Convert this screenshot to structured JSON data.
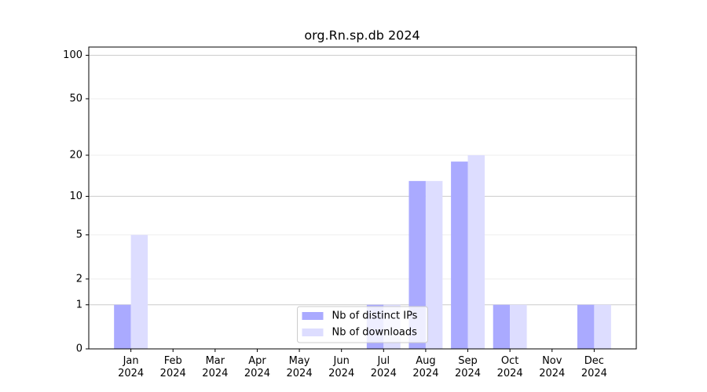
{
  "chart_data": {
    "type": "bar",
    "title": "org.Rn.sp.db 2024",
    "categories": [
      "Jan\n2024",
      "Feb\n2024",
      "Mar\n2024",
      "Apr\n2024",
      "May\n2024",
      "Jun\n2024",
      "Jul\n2024",
      "Aug\n2024",
      "Sep\n2024",
      "Oct\n2024",
      "Nov\n2024",
      "Dec\n2024"
    ],
    "series": [
      {
        "name": "Nb of distinct IPs",
        "color": "#aaaaff",
        "values": [
          1,
          0,
          0,
          0,
          0,
          0,
          1,
          13,
          18,
          1,
          0,
          1
        ]
      },
      {
        "name": "Nb of downloads",
        "color": "#ddddff",
        "values": [
          5,
          0,
          0,
          0,
          0,
          0,
          1,
          13,
          20,
          1,
          0,
          1
        ]
      }
    ],
    "yscale": "log1p",
    "ylim": [
      0,
      114
    ],
    "yticks": [
      0,
      1,
      2,
      5,
      10,
      20,
      50,
      100
    ],
    "grid": true,
    "legend": "lower center"
  }
}
